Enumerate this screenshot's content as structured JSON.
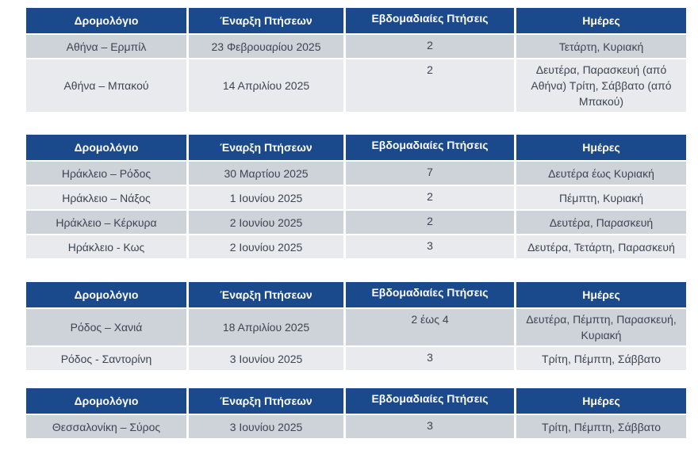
{
  "columns": [
    "Δρομολόγιο",
    "Έναρξη Πτήσεων",
    "Εβδομαδιαίες Πτήσεις",
    "Ημέρες"
  ],
  "colors": {
    "header_bg": "#1B4A8C",
    "header_text": "#FFFFFF",
    "row_dark": "#CED3DA",
    "row_light": "#E9EAED",
    "body_text": "#3D4452"
  },
  "tables": [
    {
      "name": "athens-routes",
      "rows": [
        {
          "route": "Αθήνα – Ερμπίλ",
          "start": "23 Φεβρουαρίου 2025",
          "weekly": "2",
          "days": "Τετάρτη, Κυριακή"
        },
        {
          "route": "Αθήνα – Μπακού",
          "start": "14 Απριλίου 2025",
          "weekly": "2",
          "days": "Δευτέρα, Παρασκευή (από Αθήνα) Τρίτη, Σάββατο (από Μπακού)"
        }
      ]
    },
    {
      "name": "heraklion-routes",
      "rows": [
        {
          "route": "Ηράκλειο – Ρόδος",
          "start": "30 Μαρτίου 2025",
          "weekly": "7",
          "days": "Δευτέρα έως Κυριακή"
        },
        {
          "route": "Ηράκλειο – Νάξος",
          "start": "1 Ιουνίου 2025",
          "weekly": "2",
          "days": "Πέμπτη, Κυριακή"
        },
        {
          "route": "Ηράκλειο – Κέρκυρα",
          "start": "2 Ιουνίου 2025",
          "weekly": "2",
          "days": "Δευτέρα, Παρασκευή"
        },
        {
          "route": "Ηράκλειο - Κως",
          "start": "2 Ιουνίου 2025",
          "weekly": "3",
          "days": "Δευτέρα, Τετάρτη, Παρασκευή"
        }
      ]
    },
    {
      "name": "rhodes-routes",
      "rows": [
        {
          "route": "Ρόδος – Χανιά",
          "start": "18 Απριλίου 2025",
          "weekly": "2 έως 4",
          "days": "Δευτέρα, Πέμπτη, Παρασκευή, Κυριακή"
        },
        {
          "route": "Ρόδος - Σαντορίνη",
          "start": "3 Ιουνίου 2025",
          "weekly": "3",
          "days": "Τρίτη, Πέμπτη, Σάββατο"
        }
      ]
    },
    {
      "name": "thessaloniki-routes",
      "rows": [
        {
          "route": "Θεσσαλονίκη – Σύρος",
          "start": "3 Ιουνίου 2025",
          "weekly": "3",
          "days": "Τρίτη, Πέμπτη, Σάββατο"
        }
      ]
    }
  ]
}
